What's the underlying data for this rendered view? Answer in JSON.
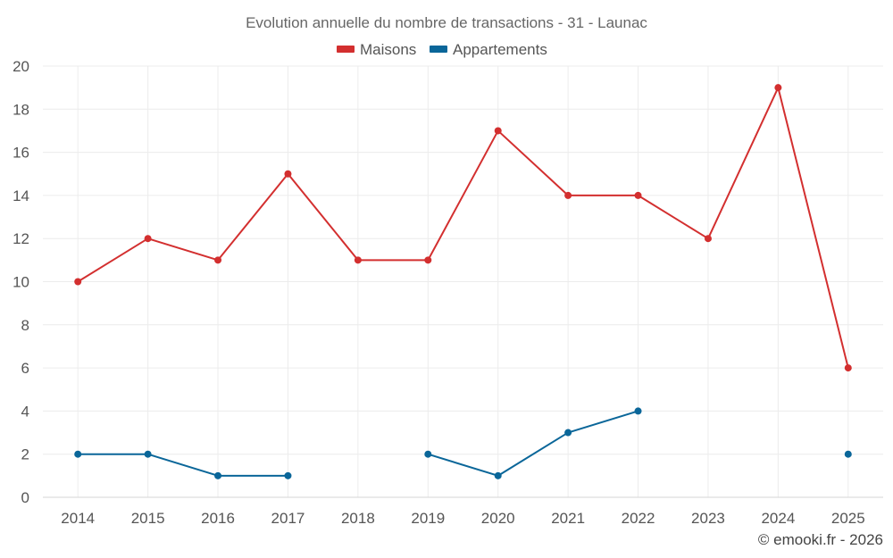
{
  "chart_data": {
    "type": "line",
    "title": "Evolution annuelle du nombre de transactions - 31 - Launac",
    "categories": [
      "2014",
      "2015",
      "2016",
      "2017",
      "2018",
      "2019",
      "2020",
      "2021",
      "2022",
      "2023",
      "2024",
      "2025"
    ],
    "series": [
      {
        "name": "Maisons",
        "color": "#d32f2f",
        "values": [
          10,
          12,
          11,
          15,
          11,
          11,
          17,
          14,
          14,
          12,
          19,
          6
        ]
      },
      {
        "name": "Appartements",
        "color": "#0a6699",
        "values": [
          2,
          2,
          1,
          1,
          null,
          2,
          1,
          3,
          4,
          null,
          null,
          2
        ]
      }
    ],
    "ylim": [
      0,
      20
    ],
    "yticks": [
      0,
      2,
      4,
      6,
      8,
      10,
      12,
      14,
      16,
      18,
      20
    ],
    "grid": true,
    "legend": "top-center",
    "credit": "© emooki.fr - 2026"
  }
}
